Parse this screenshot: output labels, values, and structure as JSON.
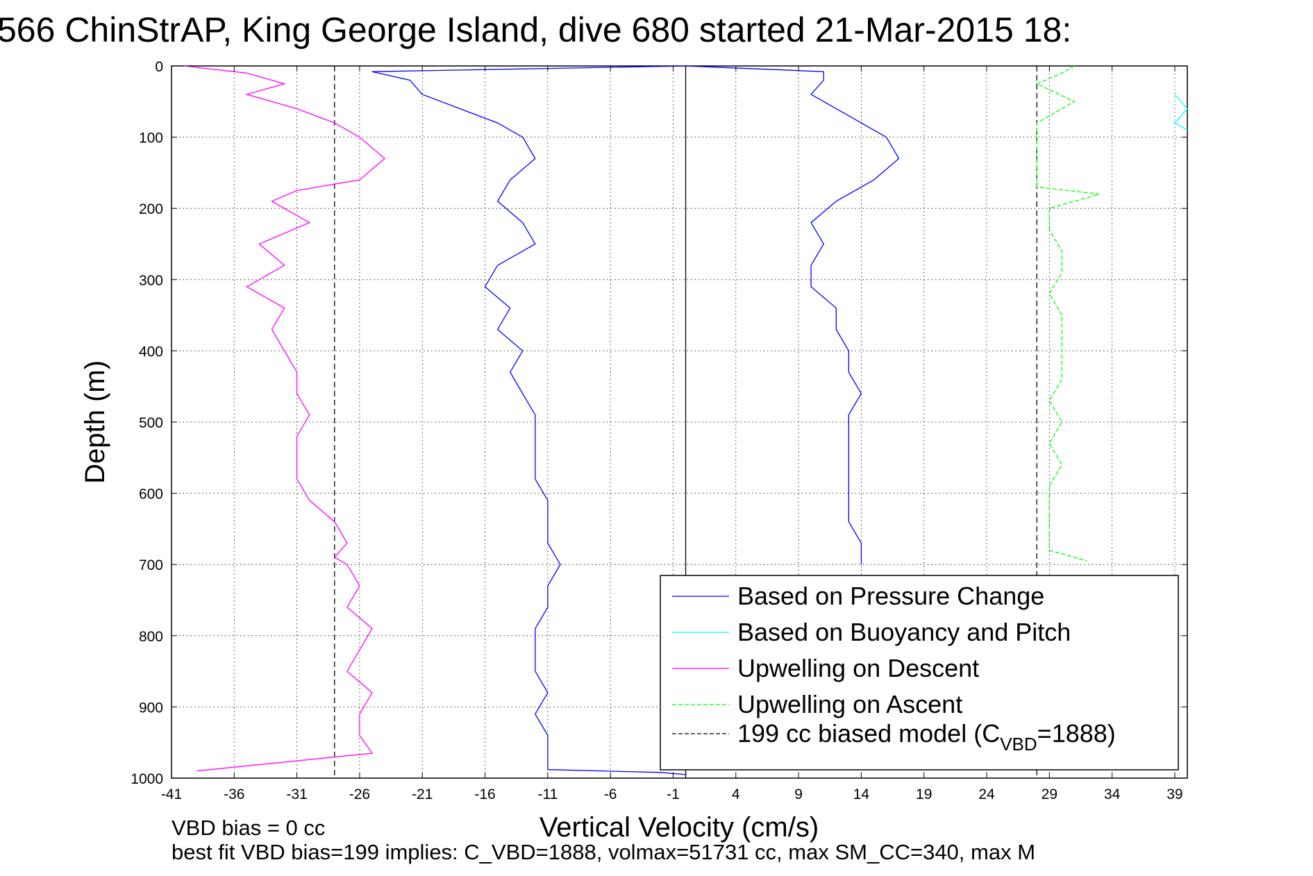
{
  "chart_data": {
    "type": "line",
    "title": "566 ChinStrAP, King George Island, dive 680 started 21-Mar-2015 18:",
    "xlabel": "Vertical Velocity (cm/s)",
    "ylabel": "Depth (m)",
    "xlim": [
      -41,
      40
    ],
    "ylim": [
      1000,
      0
    ],
    "x_ticks": [
      "-41",
      "-36",
      "-31",
      "-26",
      "-21",
      "-16",
      "-11",
      "-6",
      "-1",
      "4",
      "9",
      "14",
      "19",
      "24",
      "29",
      "34",
      "39"
    ],
    "y_ticks": [
      "0",
      "100",
      "200",
      "300",
      "400",
      "500",
      "600",
      "700",
      "800",
      "900",
      "1000"
    ],
    "grid": true,
    "legend_position": "bottom-right",
    "legend": [
      {
        "label": "Based on Pressure Change",
        "color": "#0000ff",
        "style": "solid"
      },
      {
        "label": "Based on Buoyancy and Pitch",
        "color": "#00ffff",
        "style": "solid"
      },
      {
        "label": "Upwelling on Descent",
        "color": "#ff00ff",
        "style": "solid"
      },
      {
        "label": "Upwelling on Ascent",
        "color": "#00ff00",
        "style": "dashed"
      },
      {
        "label_main": "199 cc biased model (C",
        "label_sub": "VBD",
        "label_end": "=1888)",
        "color": "#000000",
        "style": "dashed"
      }
    ],
    "vertical_reference_lines": [
      {
        "x": 0,
        "color": "#000000",
        "style": "solid"
      },
      {
        "x": -28,
        "color": "#000000",
        "style": "dashed"
      },
      {
        "x": 28,
        "color": "#000000",
        "style": "dashed"
      }
    ],
    "series": [
      {
        "name": "Based on Pressure Change",
        "color": "#0000ff",
        "style": "solid",
        "points": [
          [
            0,
            0
          ],
          [
            -25,
            8
          ],
          [
            -22,
            20
          ],
          [
            -21,
            40
          ],
          [
            -18,
            60
          ],
          [
            -15,
            80
          ],
          [
            -13,
            100
          ],
          [
            -12,
            130
          ],
          [
            -14,
            160
          ],
          [
            -15,
            190
          ],
          [
            -13,
            220
          ],
          [
            -12,
            250
          ],
          [
            -15,
            280
          ],
          [
            -16,
            310
          ],
          [
            -14,
            340
          ],
          [
            -15,
            370
          ],
          [
            -13,
            400
          ],
          [
            -14,
            430
          ],
          [
            -13,
            460
          ],
          [
            -12,
            490
          ],
          [
            -12,
            520
          ],
          [
            -12,
            550
          ],
          [
            -12,
            580
          ],
          [
            -11,
            610
          ],
          [
            -11,
            640
          ],
          [
            -11,
            670
          ],
          [
            -10,
            700
          ],
          [
            -11,
            730
          ],
          [
            -11,
            760
          ],
          [
            -12,
            790
          ],
          [
            -12,
            820
          ],
          [
            -12,
            850
          ],
          [
            -11,
            880
          ],
          [
            -12,
            910
          ],
          [
            -11,
            940
          ],
          [
            -11,
            970
          ],
          [
            -11,
            988
          ],
          [
            -2,
            992
          ],
          [
            0,
            995
          ]
        ]
      },
      {
        "name": "Based on Pressure Change (ascent)",
        "color": "#0000ff",
        "style": "solid",
        "points": [
          [
            0,
            0
          ],
          [
            11,
            8
          ],
          [
            11,
            20
          ],
          [
            10,
            40
          ],
          [
            12,
            60
          ],
          [
            14,
            80
          ],
          [
            16,
            100
          ],
          [
            17,
            130
          ],
          [
            15,
            160
          ],
          [
            12,
            190
          ],
          [
            10,
            220
          ],
          [
            11,
            250
          ],
          [
            10,
            280
          ],
          [
            10,
            310
          ],
          [
            12,
            340
          ],
          [
            12,
            370
          ],
          [
            13,
            400
          ],
          [
            13,
            430
          ],
          [
            14,
            460
          ],
          [
            13,
            490
          ],
          [
            13,
            520
          ],
          [
            13,
            550
          ],
          [
            13,
            580
          ],
          [
            13,
            610
          ],
          [
            13,
            640
          ],
          [
            14,
            670
          ],
          [
            14,
            700
          ]
        ]
      },
      {
        "name": "Upwelling on Descent",
        "color": "#ff00ff",
        "style": "solid",
        "points": [
          [
            -40,
            0
          ],
          [
            -35,
            10
          ],
          [
            -32,
            25
          ],
          [
            -35,
            40
          ],
          [
            -31,
            60
          ],
          [
            -28,
            80
          ],
          [
            -26,
            100
          ],
          [
            -24,
            130
          ],
          [
            -26,
            160
          ],
          [
            -31,
            175
          ],
          [
            -33,
            190
          ],
          [
            -30,
            220
          ],
          [
            -34,
            250
          ],
          [
            -32,
            280
          ],
          [
            -35,
            310
          ],
          [
            -32,
            340
          ],
          [
            -33,
            370
          ],
          [
            -32,
            400
          ],
          [
            -31,
            430
          ],
          [
            -31,
            460
          ],
          [
            -30,
            490
          ],
          [
            -31,
            520
          ],
          [
            -31,
            550
          ],
          [
            -31,
            580
          ],
          [
            -30,
            610
          ],
          [
            -28,
            640
          ],
          [
            -27,
            670
          ],
          [
            -28,
            690
          ],
          [
            -27,
            700
          ],
          [
            -26,
            730
          ],
          [
            -27,
            760
          ],
          [
            -25,
            790
          ],
          [
            -26,
            820
          ],
          [
            -27,
            850
          ],
          [
            -25,
            880
          ],
          [
            -26,
            910
          ],
          [
            -26,
            940
          ],
          [
            -25,
            965
          ],
          [
            -39,
            990
          ]
        ]
      },
      {
        "name": "Upwelling on Ascent",
        "color": "#00ff00",
        "style": "dashed",
        "points": [
          [
            31,
            0
          ],
          [
            30,
            10
          ],
          [
            28,
            25
          ],
          [
            31,
            50
          ],
          [
            28,
            80
          ],
          [
            28,
            110
          ],
          [
            28,
            140
          ],
          [
            28,
            170
          ],
          [
            33,
            180
          ],
          [
            29,
            200
          ],
          [
            29,
            230
          ],
          [
            30,
            260
          ],
          [
            30,
            290
          ],
          [
            29,
            320
          ],
          [
            30,
            350
          ],
          [
            30,
            380
          ],
          [
            30,
            410
          ],
          [
            30,
            440
          ],
          [
            29,
            470
          ],
          [
            30,
            500
          ],
          [
            29,
            530
          ],
          [
            30,
            560
          ],
          [
            29,
            590
          ],
          [
            29,
            620
          ],
          [
            29,
            650
          ],
          [
            29,
            680
          ],
          [
            32,
            695
          ]
        ]
      },
      {
        "name": "Based on Buoyancy and Pitch",
        "color": "#00ffff",
        "style": "solid",
        "points": [
          [
            39,
            40
          ],
          [
            40,
            60
          ],
          [
            39,
            80
          ],
          [
            40,
            90
          ]
        ]
      }
    ]
  },
  "footer": {
    "line1": "VBD bias = 0 cc",
    "line2": "best fit VBD bias=199 implies: C_VBD=1888, volmax=51731 cc, max SM_CC=340, max M"
  }
}
